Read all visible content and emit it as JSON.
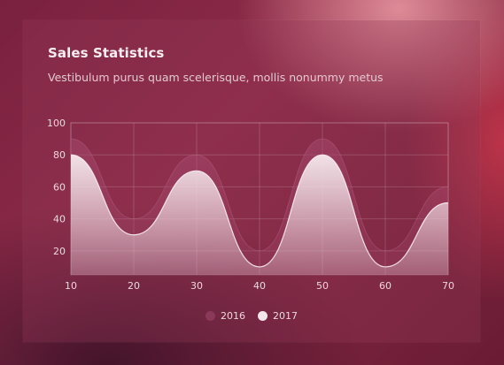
{
  "chart_data": {
    "type": "area",
    "title": "Sales Statistics",
    "subtitle": "Vestibulum purus quam scelerisque, mollis nonummy metus",
    "x": [
      10,
      20,
      30,
      40,
      50,
      60,
      70
    ],
    "series": [
      {
        "name": "2016",
        "values": [
          90,
          40,
          80,
          20,
          90,
          20,
          60
        ],
        "color": "#8a3a58"
      },
      {
        "name": "2017",
        "values": [
          80,
          30,
          70,
          10,
          80,
          10,
          50
        ],
        "color": "#f3e6ea"
      }
    ],
    "x_ticks": [
      10,
      20,
      30,
      40,
      50,
      60,
      70
    ],
    "y_ticks": [
      20,
      40,
      60,
      80,
      100
    ],
    "ylim": [
      5,
      100
    ],
    "xlim": [
      10,
      70
    ],
    "grid": true,
    "legend_position": "bottom-center",
    "xlabel": "",
    "ylabel": ""
  }
}
